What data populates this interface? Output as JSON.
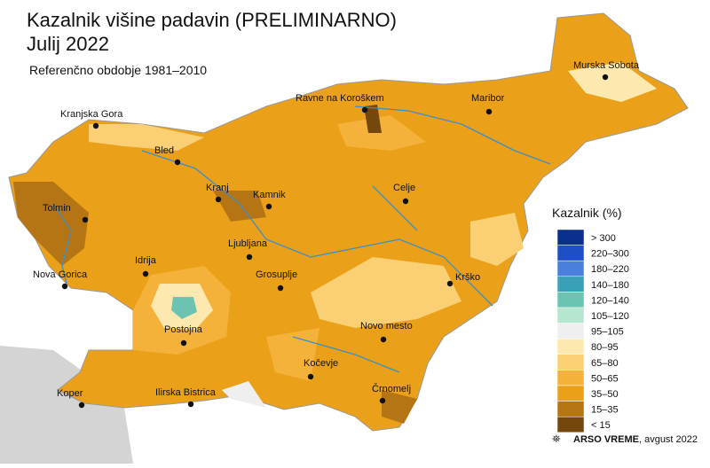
{
  "header": {
    "title": "Kazalnik višine padavin (PRELIMINARNO)",
    "period": "Julij 2022",
    "subtitle": "Referenčno obdobje 1981–2010"
  },
  "cities": [
    "Murska Sobota",
    "Ravne na Koroškem",
    "Maribor",
    "Kranjska Gora",
    "Bled",
    "Kranj",
    "Kamnik",
    "Celje",
    "Tolmin",
    "Ljubljana",
    "Idrija",
    "Grosuplje",
    "Krško",
    "Nova Gorica",
    "Novo mesto",
    "Postojna",
    "Kočevje",
    "Koper",
    "Ilirska Bistrica",
    "Črnomelj"
  ],
  "legend": {
    "title": "Kazalnik (%)",
    "items": [
      {
        "label": "> 300",
        "color": "#0a2f8c"
      },
      {
        "label": "220–300",
        "color": "#1f4fc4"
      },
      {
        "label": "180–220",
        "color": "#4a7fdc"
      },
      {
        "label": "140–180",
        "color": "#3aa0b8"
      },
      {
        "label": "120–140",
        "color": "#6cc3b2"
      },
      {
        "label": "105–120",
        "color": "#b6e6cf"
      },
      {
        "label": "95–105",
        "color": "#efefef"
      },
      {
        "label": "80–95",
        "color": "#fde9b0"
      },
      {
        "label": "65–80",
        "color": "#fbcf74"
      },
      {
        "label": "50–65",
        "color": "#f5b23a"
      },
      {
        "label": "35–50",
        "color": "#eaa018"
      },
      {
        "label": "15–35",
        "color": "#b67514"
      },
      {
        "label": "< 15",
        "color": "#74470d"
      }
    ]
  },
  "footer": {
    "brand": "ARSO VREME",
    "date": ", avgust 2022"
  }
}
